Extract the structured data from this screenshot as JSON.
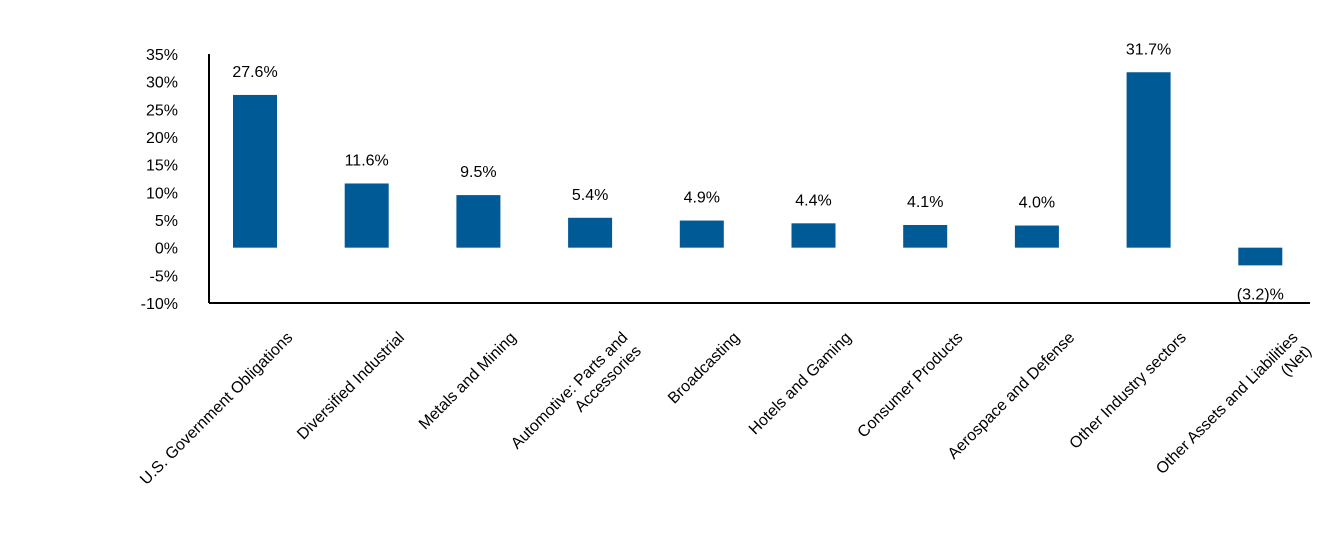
{
  "chart_data": {
    "type": "bar",
    "title": "",
    "xlabel": "",
    "ylabel": "",
    "ylim": [
      -10,
      35
    ],
    "yticks": [
      -10,
      -5,
      0,
      5,
      10,
      15,
      20,
      25,
      30,
      35
    ],
    "ytick_labels": [
      "-10%",
      "-5%",
      "0%",
      "5%",
      "10%",
      "15%",
      "20%",
      "25%",
      "30%",
      "35%"
    ],
    "grid": false,
    "legend": "none",
    "bar_color": "#005A96",
    "categories": [
      "U.S. Government Obligations",
      "Diversified Industrial",
      "Metals and Mining",
      "Automotive: Parts and Accessories",
      "Broadcasting",
      "Hotels and Gaming",
      "Consumer Products",
      "Aerospace and Defense",
      "Other Industry sectors",
      "Other Assets and Liabilities (Net)"
    ],
    "category_label_lines": [
      [
        "U.S. Government Obligations"
      ],
      [
        "Diversified Industrial"
      ],
      [
        "Metals and Mining"
      ],
      [
        "Automotive: Parts and",
        "Accessories"
      ],
      [
        "Broadcasting"
      ],
      [
        "Hotels and Gaming"
      ],
      [
        "Consumer Products"
      ],
      [
        "Aerospace and Defense"
      ],
      [
        "Other Industry sectors"
      ],
      [
        "Other Assets and Liabilities",
        "(Net)"
      ]
    ],
    "values": [
      27.6,
      11.6,
      9.5,
      5.4,
      4.9,
      4.4,
      4.1,
      4.0,
      31.7,
      -3.2
    ],
    "data_labels": [
      "27.6%",
      "11.6%",
      "9.5%",
      "5.4%",
      "4.9%",
      "4.4%",
      "4.1%",
      "4.0%",
      "31.7%",
      "(3.2)%"
    ]
  }
}
